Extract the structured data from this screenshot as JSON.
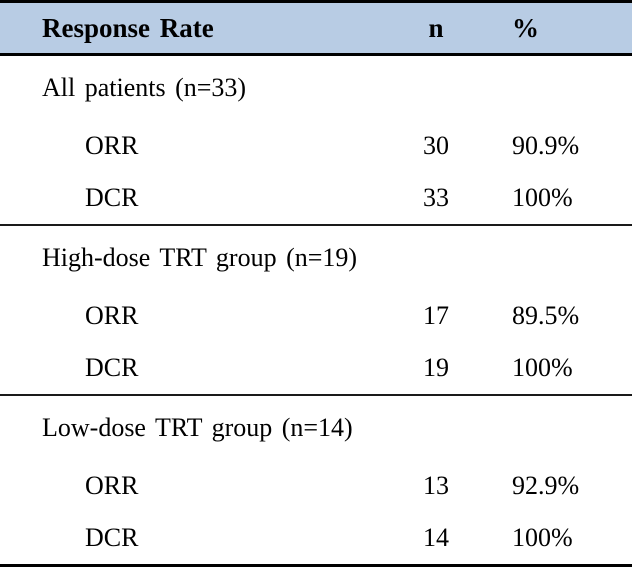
{
  "table": {
    "header": {
      "label": "Response Rate",
      "n": "n",
      "pct": "%"
    },
    "sections": [
      {
        "group": "All patients (n=33)",
        "rows": [
          {
            "label": "ORR",
            "n": "30",
            "pct": "90.9%"
          },
          {
            "label": "DCR",
            "n": "33",
            "pct": "100%"
          }
        ]
      },
      {
        "group": "High-dose TRT group (n=19)",
        "rows": [
          {
            "label": "ORR",
            "n": "17",
            "pct": "89.5%"
          },
          {
            "label": "DCR",
            "n": "19",
            "pct": "100%"
          }
        ]
      },
      {
        "group": "Low-dose TRT group (n=14)",
        "rows": [
          {
            "label": "ORR",
            "n": "13",
            "pct": "92.9%"
          },
          {
            "label": "DCR",
            "n": "14",
            "pct": "100%"
          }
        ]
      }
    ],
    "colors": {
      "header_bg": "#b8cce4",
      "border_heavy": "#000000",
      "border_light": "#1a1a1a",
      "text": "#000000"
    }
  }
}
